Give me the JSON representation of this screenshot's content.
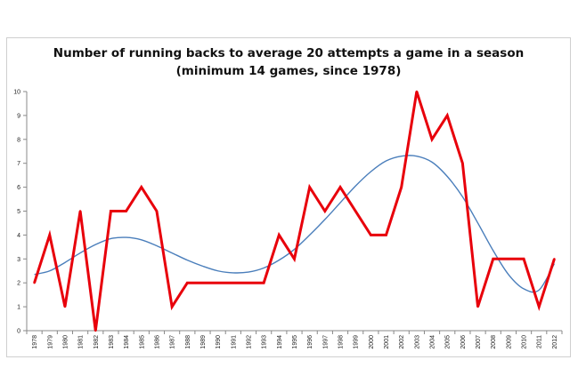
{
  "chart_data": {
    "type": "line",
    "title": "Number of running backs to average 20 attempts a game in a season",
    "subtitle": "(minimum 14 games, since 1978)",
    "xlabel": "",
    "ylabel": "",
    "ylim": [
      0,
      10
    ],
    "yticks": [
      0,
      1,
      2,
      3,
      4,
      5,
      6,
      7,
      8,
      9,
      10
    ],
    "grid": false,
    "legend": "none",
    "categories": [
      "1978",
      "1979",
      "1980",
      "1981",
      "1982",
      "1983",
      "1984",
      "1985",
      "1986",
      "1987",
      "1988",
      "1989",
      "1990",
      "1991",
      "1992",
      "1993",
      "1994",
      "1995",
      "1996",
      "1997",
      "1998",
      "1999",
      "2000",
      "2001",
      "2002",
      "2003",
      "2004",
      "2005",
      "2006",
      "2007",
      "2008",
      "2009",
      "2010",
      "2011",
      "2012"
    ],
    "series": [
      {
        "color": "#e8000b",
        "values": [
          2,
          4,
          1,
          5,
          0,
          5,
          5,
          6,
          5,
          1,
          2,
          2,
          2,
          2,
          2,
          2,
          4,
          3,
          6,
          5,
          6,
          5,
          4,
          4,
          6,
          10,
          8,
          9,
          7,
          1,
          3,
          3,
          3,
          1,
          3
        ]
      },
      {
        "color": "#4a7ebb",
        "style": "trendline",
        "values": [
          2.35,
          2.5,
          2.85,
          3.25,
          3.6,
          3.85,
          3.9,
          3.8,
          3.55,
          3.25,
          2.95,
          2.7,
          2.5,
          2.42,
          2.45,
          2.62,
          2.95,
          3.4,
          4.0,
          4.65,
          5.35,
          6.05,
          6.65,
          7.1,
          7.3,
          7.3,
          7.05,
          6.45,
          5.6,
          4.5,
          3.35,
          2.35,
          1.75,
          1.7,
          2.8
        ]
      }
    ]
  }
}
